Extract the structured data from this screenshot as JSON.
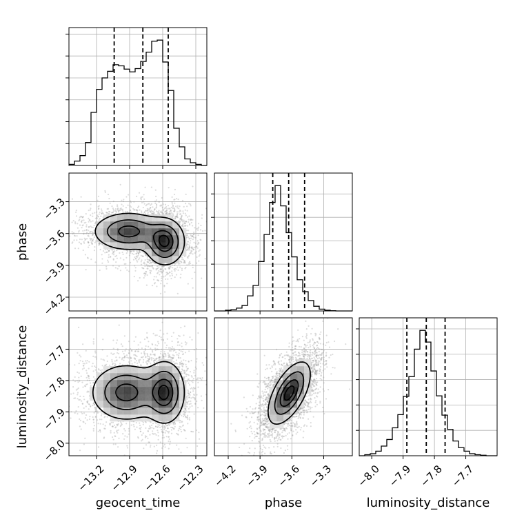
{
  "chart_data": {
    "type": "corner",
    "parameters": [
      "geocent_time",
      "phase",
      "luminosity_distance"
    ],
    "ranges": {
      "geocent_time": [
        -13.45,
        -12.2
      ],
      "phase": [
        -4.33,
        -3.03
      ],
      "luminosity_distance": [
        -8.04,
        -7.6
      ]
    },
    "ticks": {
      "geocent_time": [
        {
          "v": -13.2,
          "label": "−13.2"
        },
        {
          "v": -12.9,
          "label": "−12.9"
        },
        {
          "v": -12.6,
          "label": "−12.6"
        },
        {
          "v": -12.3,
          "label": "−12.3"
        }
      ],
      "phase": [
        {
          "v": -4.2,
          "label": "−4.2"
        },
        {
          "v": -3.9,
          "label": "−3.9"
        },
        {
          "v": -3.6,
          "label": "−3.6"
        },
        {
          "v": -3.3,
          "label": "−3.3"
        }
      ],
      "luminosity_distance": [
        {
          "v": -8.0,
          "label": "−8.0"
        },
        {
          "v": -7.9,
          "label": "−7.9"
        },
        {
          "v": -7.8,
          "label": "−7.8"
        },
        {
          "v": -7.7,
          "label": "−7.7"
        }
      ]
    },
    "quantiles": {
      "geocent_time": [
        -13.04,
        -12.78,
        -12.55
      ],
      "phase": [
        -3.78,
        -3.63,
        -3.48
      ],
      "luminosity_distance": [
        -7.888,
        -7.826,
        -7.766
      ]
    },
    "histograms": {
      "geocent_time": {
        "bins": [
          -13.45,
          -13.4,
          -13.35,
          -13.3,
          -13.25,
          -13.2,
          -13.15,
          -13.1,
          -13.05,
          -13.0,
          -12.95,
          -12.9,
          -12.85,
          -12.8,
          -12.75,
          -12.7,
          -12.65,
          -12.6,
          -12.55,
          -12.5,
          -12.45,
          -12.4,
          -12.35,
          -12.3,
          -12.25,
          -12.2
        ],
        "counts": [
          2,
          8,
          18,
          42,
          97,
          139,
          160,
          172,
          184,
          182,
          176,
          171,
          177,
          190,
          207,
          227,
          229,
          189,
          137,
          68,
          34,
          12,
          5,
          2,
          0
        ]
      },
      "phase": {
        "bins": [
          -4.33,
          -4.278,
          -4.226,
          -4.174,
          -4.122,
          -4.07,
          -4.018,
          -3.966,
          -3.914,
          -3.862,
          -3.81,
          -3.758,
          -3.706,
          -3.654,
          -3.602,
          -3.55,
          -3.498,
          -3.446,
          -3.394,
          -3.342,
          -3.29,
          -3.238,
          -3.186,
          -3.134,
          -3.082,
          -3.03
        ],
        "counts": [
          0,
          0,
          3,
          5,
          11,
          21,
          58,
          98,
          190,
          294,
          417,
          482,
          404,
          301,
          208,
          120,
          74,
          40,
          18,
          7,
          3,
          1,
          0,
          0,
          0
        ]
      },
      "luminosity_distance": {
        "bins": [
          -8.04,
          -8.0224,
          -8.0048,
          -7.9872,
          -7.9696,
          -7.952,
          -7.9344,
          -7.9168,
          -7.8992,
          -7.8816,
          -7.864,
          -7.8464,
          -7.8288,
          -7.8112,
          -7.7936,
          -7.776,
          -7.7584,
          -7.7408,
          -7.7232,
          -7.7056,
          -7.688,
          -7.6704,
          -7.6528,
          -7.6352,
          -7.6176,
          -7.6
        ],
        "counts": [
          0,
          2,
          4,
          9,
          19,
          32,
          55,
          81,
          117,
          156,
          210,
          247,
          224,
          167,
          118,
          80,
          52,
          29,
          16,
          9,
          4,
          2,
          1,
          0,
          0
        ]
      }
    },
    "joint_2d": {
      "phase_vs_geocent_time": {
        "modes": [
          {
            "x": -12.91,
            "y": -3.58,
            "sx": 0.16,
            "sy": 0.09,
            "weight": 1.0
          },
          {
            "x": -12.58,
            "y": -3.68,
            "sx": 0.09,
            "sy": 0.11,
            "weight": 1.15
          }
        ]
      },
      "luminosity_distance_vs_geocent_time": {
        "modes": [
          {
            "x": -12.93,
            "y": -7.838,
            "sx": 0.16,
            "sy": 0.045,
            "weight": 1.0
          },
          {
            "x": -12.58,
            "y": -7.838,
            "sx": 0.09,
            "sy": 0.05,
            "weight": 1.1
          }
        ]
      },
      "luminosity_distance_vs_phase": {
        "modes": [
          {
            "x": -3.625,
            "y": -7.84,
            "sx": 0.1,
            "sy": 0.05,
            "weight": 1.0
          }
        ],
        "correlation": 0.6
      }
    },
    "grid": true
  }
}
